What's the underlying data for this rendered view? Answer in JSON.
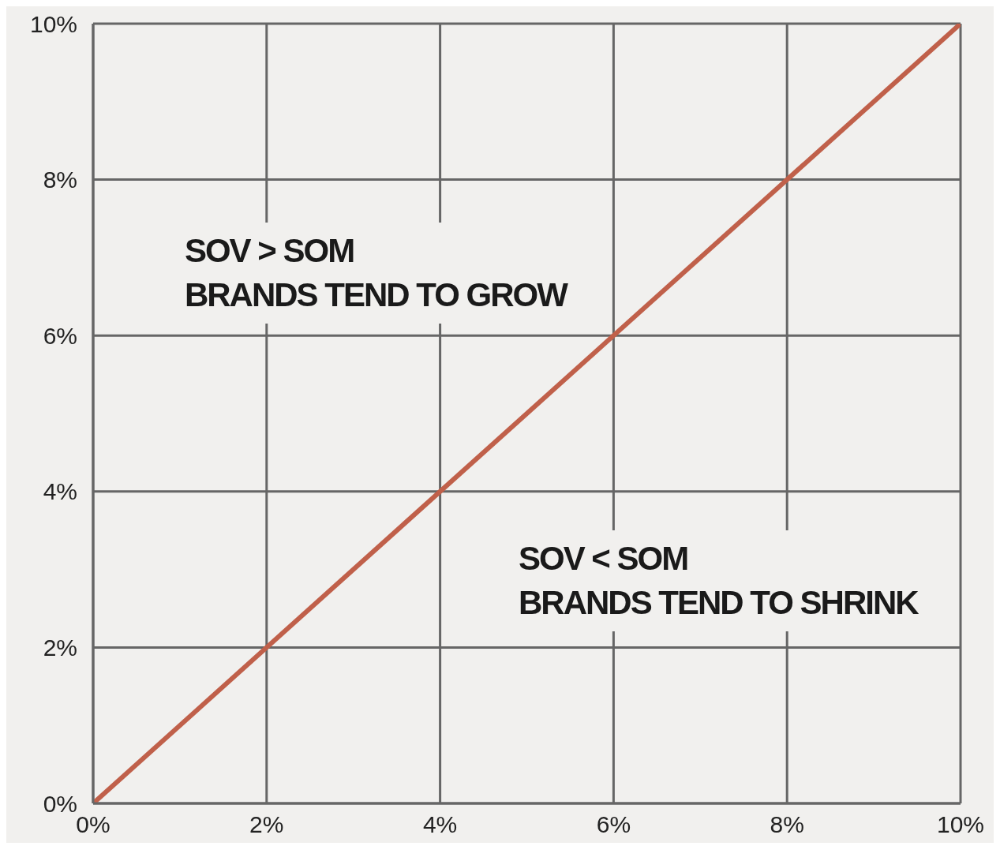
{
  "chart_data": {
    "type": "line",
    "x": [
      0,
      10
    ],
    "series": [
      {
        "color": "#c0604a",
        "values": [
          0,
          10
        ]
      }
    ],
    "xlim": [
      0,
      10
    ],
    "ylim": [
      0,
      10
    ],
    "xticks": [
      {
        "value": 0,
        "label": "0%"
      },
      {
        "value": 2,
        "label": "2%"
      },
      {
        "value": 4,
        "label": "4%"
      },
      {
        "value": 6,
        "label": "6%"
      },
      {
        "value": 8,
        "label": "8%"
      },
      {
        "value": 10,
        "label": "10%"
      }
    ],
    "yticks": [
      {
        "value": 0,
        "label": "0%"
      },
      {
        "value": 2,
        "label": "2%"
      },
      {
        "value": 4,
        "label": "4%"
      },
      {
        "value": 6,
        "label": "6%"
      },
      {
        "value": 8,
        "label": "8%"
      },
      {
        "value": 10,
        "label": "10%"
      }
    ],
    "grid": true,
    "marker": "none",
    "line_style": "solid",
    "annotations": [
      "SOV > SOM\nBRANDS TEND TO GROW",
      "SOV < SOM\nBRANDS TEND TO SHRINK"
    ]
  }
}
